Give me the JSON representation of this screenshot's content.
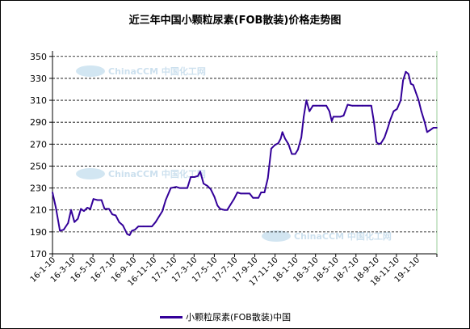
{
  "chart_data": {
    "type": "line",
    "title": "近三年中国小颗粒尿素(FOB散装)价格走势图",
    "xlabel": "",
    "ylabel": "",
    "ylim": [
      170,
      355
    ],
    "yticks": [
      170,
      190,
      210,
      230,
      250,
      270,
      290,
      310,
      330,
      350
    ],
    "xtick_labels": [
      "16-1-10",
      "16-3-10",
      "16-5-10",
      "16-7-10",
      "16-9-10",
      "16-11-10",
      "17-1-10",
      "17-3-10",
      "17-5-10",
      "17-7-10",
      "17-9-10",
      "17-11-10",
      "18-1-10",
      "18-3-10",
      "18-5-10",
      "18-7-10",
      "18-9-10",
      "18-11-10",
      "19-1-10"
    ],
    "x_start": "2016-01-10",
    "x_end": "2019-02-20",
    "grid": "horizontal-dashed",
    "legend_position": "bottom",
    "watermark": "ChinaCCM 中国化工网",
    "series": [
      {
        "name": "小颗粒尿素(FOB散装)中国",
        "color": "#330099",
        "points": [
          [
            "2016-01-10",
            226
          ],
          [
            "2016-01-20",
            212
          ],
          [
            "2016-02-01",
            191
          ],
          [
            "2016-02-12",
            192
          ],
          [
            "2016-02-25",
            198
          ],
          [
            "2016-03-05",
            210
          ],
          [
            "2016-03-15",
            199
          ],
          [
            "2016-03-25",
            202
          ],
          [
            "2016-04-03",
            211
          ],
          [
            "2016-04-12",
            209
          ],
          [
            "2016-04-22",
            212
          ],
          [
            "2016-05-01",
            211
          ],
          [
            "2016-05-10",
            220
          ],
          [
            "2016-05-22",
            219
          ],
          [
            "2016-06-03",
            219
          ],
          [
            "2016-06-12",
            211
          ],
          [
            "2016-06-25",
            211
          ],
          [
            "2016-07-05",
            206
          ],
          [
            "2016-07-15",
            205
          ],
          [
            "2016-07-25",
            199
          ],
          [
            "2016-08-05",
            196
          ],
          [
            "2016-08-18",
            188
          ],
          [
            "2016-08-25",
            187
          ],
          [
            "2016-09-01",
            191
          ],
          [
            "2016-09-10",
            192
          ],
          [
            "2016-09-20",
            195
          ],
          [
            "2016-10-05",
            195
          ],
          [
            "2016-10-18",
            195
          ],
          [
            "2016-10-30",
            195
          ],
          [
            "2016-11-10",
            199
          ],
          [
            "2016-11-20",
            204
          ],
          [
            "2016-11-30",
            209
          ],
          [
            "2016-12-10",
            219
          ],
          [
            "2016-12-25",
            230
          ],
          [
            "2017-01-10",
            231
          ],
          [
            "2017-01-20",
            230
          ],
          [
            "2017-02-01",
            230
          ],
          [
            "2017-02-12",
            230
          ],
          [
            "2017-02-22",
            240
          ],
          [
            "2017-03-05",
            240
          ],
          [
            "2017-03-15",
            241
          ],
          [
            "2017-03-22",
            245
          ],
          [
            "2017-04-01",
            234
          ],
          [
            "2017-04-12",
            232
          ],
          [
            "2017-04-22",
            229
          ],
          [
            "2017-05-03",
            222
          ],
          [
            "2017-05-12",
            214
          ],
          [
            "2017-05-20",
            211
          ],
          [
            "2017-06-01",
            210
          ],
          [
            "2017-06-10",
            210
          ],
          [
            "2017-06-20",
            215
          ],
          [
            "2017-06-30",
            220
          ],
          [
            "2017-07-10",
            226
          ],
          [
            "2017-07-20",
            225
          ],
          [
            "2017-08-01",
            225
          ],
          [
            "2017-08-15",
            225
          ],
          [
            "2017-08-25",
            221
          ],
          [
            "2017-09-10",
            221
          ],
          [
            "2017-09-18",
            226
          ],
          [
            "2017-09-28",
            226
          ],
          [
            "2017-10-08",
            239
          ],
          [
            "2017-10-18",
            266
          ],
          [
            "2017-10-28",
            269
          ],
          [
            "2017-11-08",
            271
          ],
          [
            "2017-11-15",
            275
          ],
          [
            "2017-11-20",
            281
          ],
          [
            "2017-11-28",
            275
          ],
          [
            "2017-12-08",
            270
          ],
          [
            "2017-12-18",
            261
          ],
          [
            "2017-12-28",
            261
          ],
          [
            "2018-01-05",
            265
          ],
          [
            "2018-01-15",
            276
          ],
          [
            "2018-01-22",
            295
          ],
          [
            "2018-01-30",
            310
          ],
          [
            "2018-02-08",
            300
          ],
          [
            "2018-02-18",
            305
          ],
          [
            "2018-02-28",
            305
          ],
          [
            "2018-03-10",
            305
          ],
          [
            "2018-03-20",
            305
          ],
          [
            "2018-03-30",
            305
          ],
          [
            "2018-04-08",
            300
          ],
          [
            "2018-04-15",
            291
          ],
          [
            "2018-04-20",
            295
          ],
          [
            "2018-05-01",
            295
          ],
          [
            "2018-05-10",
            295
          ],
          [
            "2018-05-20",
            296
          ],
          [
            "2018-06-01",
            306
          ],
          [
            "2018-06-15",
            305
          ],
          [
            "2018-07-01",
            305
          ],
          [
            "2018-07-15",
            305
          ],
          [
            "2018-08-01",
            305
          ],
          [
            "2018-08-10",
            305
          ],
          [
            "2018-08-18",
            290
          ],
          [
            "2018-08-25",
            272
          ],
          [
            "2018-09-01",
            270
          ],
          [
            "2018-09-08",
            271
          ],
          [
            "2018-09-18",
            276
          ],
          [
            "2018-09-28",
            285
          ],
          [
            "2018-10-05",
            292
          ],
          [
            "2018-10-15",
            300
          ],
          [
            "2018-10-25",
            302
          ],
          [
            "2018-11-05",
            310
          ],
          [
            "2018-11-12",
            328
          ],
          [
            "2018-11-20",
            336
          ],
          [
            "2018-11-28",
            334
          ],
          [
            "2018-12-05",
            325
          ],
          [
            "2018-12-12",
            324
          ],
          [
            "2018-12-20",
            317
          ],
          [
            "2018-12-28",
            310
          ],
          [
            "2019-01-05",
            300
          ],
          [
            "2019-01-15",
            290
          ],
          [
            "2019-01-22",
            281
          ],
          [
            "2019-02-01",
            283
          ],
          [
            "2019-02-10",
            285
          ],
          [
            "2019-02-20",
            285
          ]
        ]
      }
    ]
  }
}
